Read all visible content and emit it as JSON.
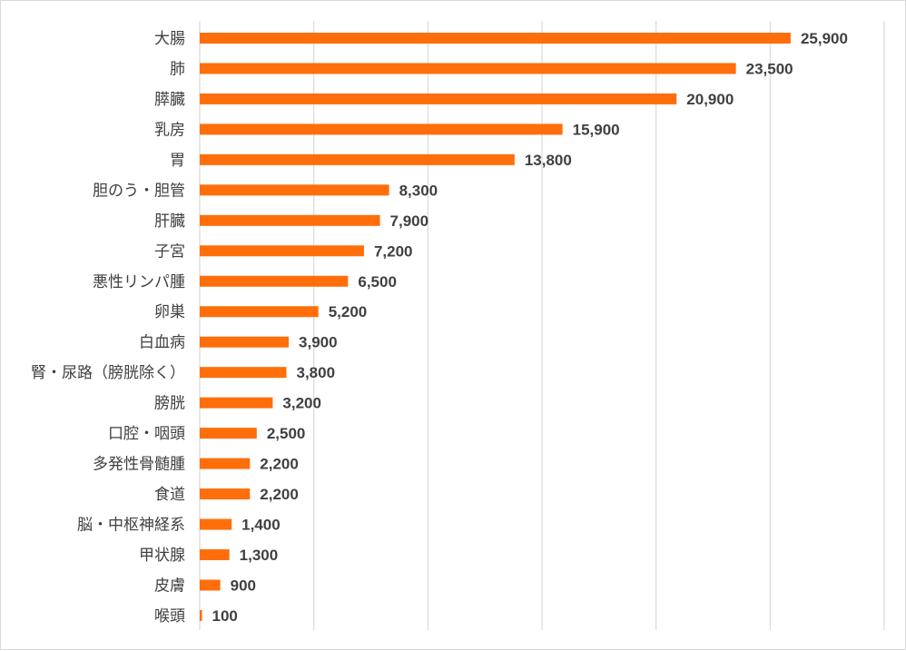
{
  "chart_data": {
    "type": "bar",
    "orientation": "horizontal",
    "categories": [
      "大腸",
      "肺",
      "膵臓",
      "乳房",
      "胃",
      "胆のう・胆管",
      "肝臓",
      "子宮",
      "悪性リンパ腫",
      "卵巣",
      "白血病",
      "腎・尿路（膀胱除く）",
      "膀胱",
      "口腔・咽頭",
      "多発性骨髄腫",
      "食道",
      "脳・中枢神経系",
      "甲状腺",
      "皮膚",
      "喉頭"
    ],
    "values": [
      25900,
      23500,
      20900,
      15900,
      13800,
      8300,
      7900,
      7200,
      6500,
      5200,
      3900,
      3800,
      3200,
      2500,
      2200,
      2200,
      1400,
      1300,
      900,
      100
    ],
    "value_labels": [
      "25,900",
      "23,500",
      "20,900",
      "15,900",
      "13,800",
      "8,300",
      "7,900",
      "7,200",
      "6,500",
      "5,200",
      "3,900",
      "3,800",
      "3,200",
      "2,500",
      "2,200",
      "2,200",
      "1,400",
      "1,300",
      "900",
      "100"
    ],
    "xlim": [
      0,
      30000
    ],
    "grid_step": 5000,
    "grid": true,
    "bar_color": "#ff6e0a",
    "title": "",
    "xlabel": "",
    "ylabel": ""
  }
}
